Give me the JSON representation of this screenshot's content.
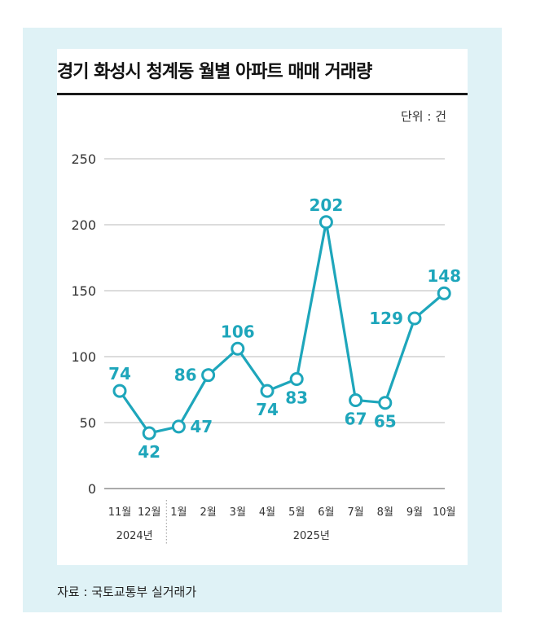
{
  "title": "경기 화성시 청계동 월별 아파트 매매 거래량",
  "unit_label": "단위 : 건",
  "source": "자료 : 국토교통부 실거래가",
  "chart_data": {
    "type": "line",
    "title": "경기 화성시 청계동 월별 아파트 매매 거래량",
    "xlabel": "",
    "ylabel": "단위 : 건",
    "categories": [
      "11월",
      "12월",
      "1월",
      "2월",
      "3월",
      "4월",
      "5월",
      "6월",
      "7월",
      "8월",
      "9월",
      "10월"
    ],
    "values": [
      74,
      42,
      47,
      86,
      106,
      74,
      83,
      202,
      67,
      65,
      129,
      148
    ],
    "series": [
      {
        "name": "매매 거래량",
        "values": [
          74,
          42,
          47,
          86,
          106,
          74,
          83,
          202,
          67,
          65,
          129,
          148
        ]
      }
    ],
    "ylim": [
      0,
      250
    ],
    "yticks": [
      0,
      50,
      100,
      150,
      200,
      250
    ],
    "grid": true,
    "year_groups": [
      {
        "label": "2024년",
        "months": [
          "11월",
          "12월"
        ]
      },
      {
        "label": "2025년",
        "months": [
          "1월",
          "2월",
          "3월",
          "4월",
          "5월",
          "6월",
          "7월",
          "8월",
          "9월",
          "10월"
        ]
      }
    ],
    "label_side": [
      "above",
      "below",
      "right",
      "left",
      "above",
      "below",
      "below",
      "above",
      "below",
      "below",
      "left",
      "above"
    ],
    "line_color": "#1ea6bb",
    "grid_color": "#b8b8b8"
  }
}
